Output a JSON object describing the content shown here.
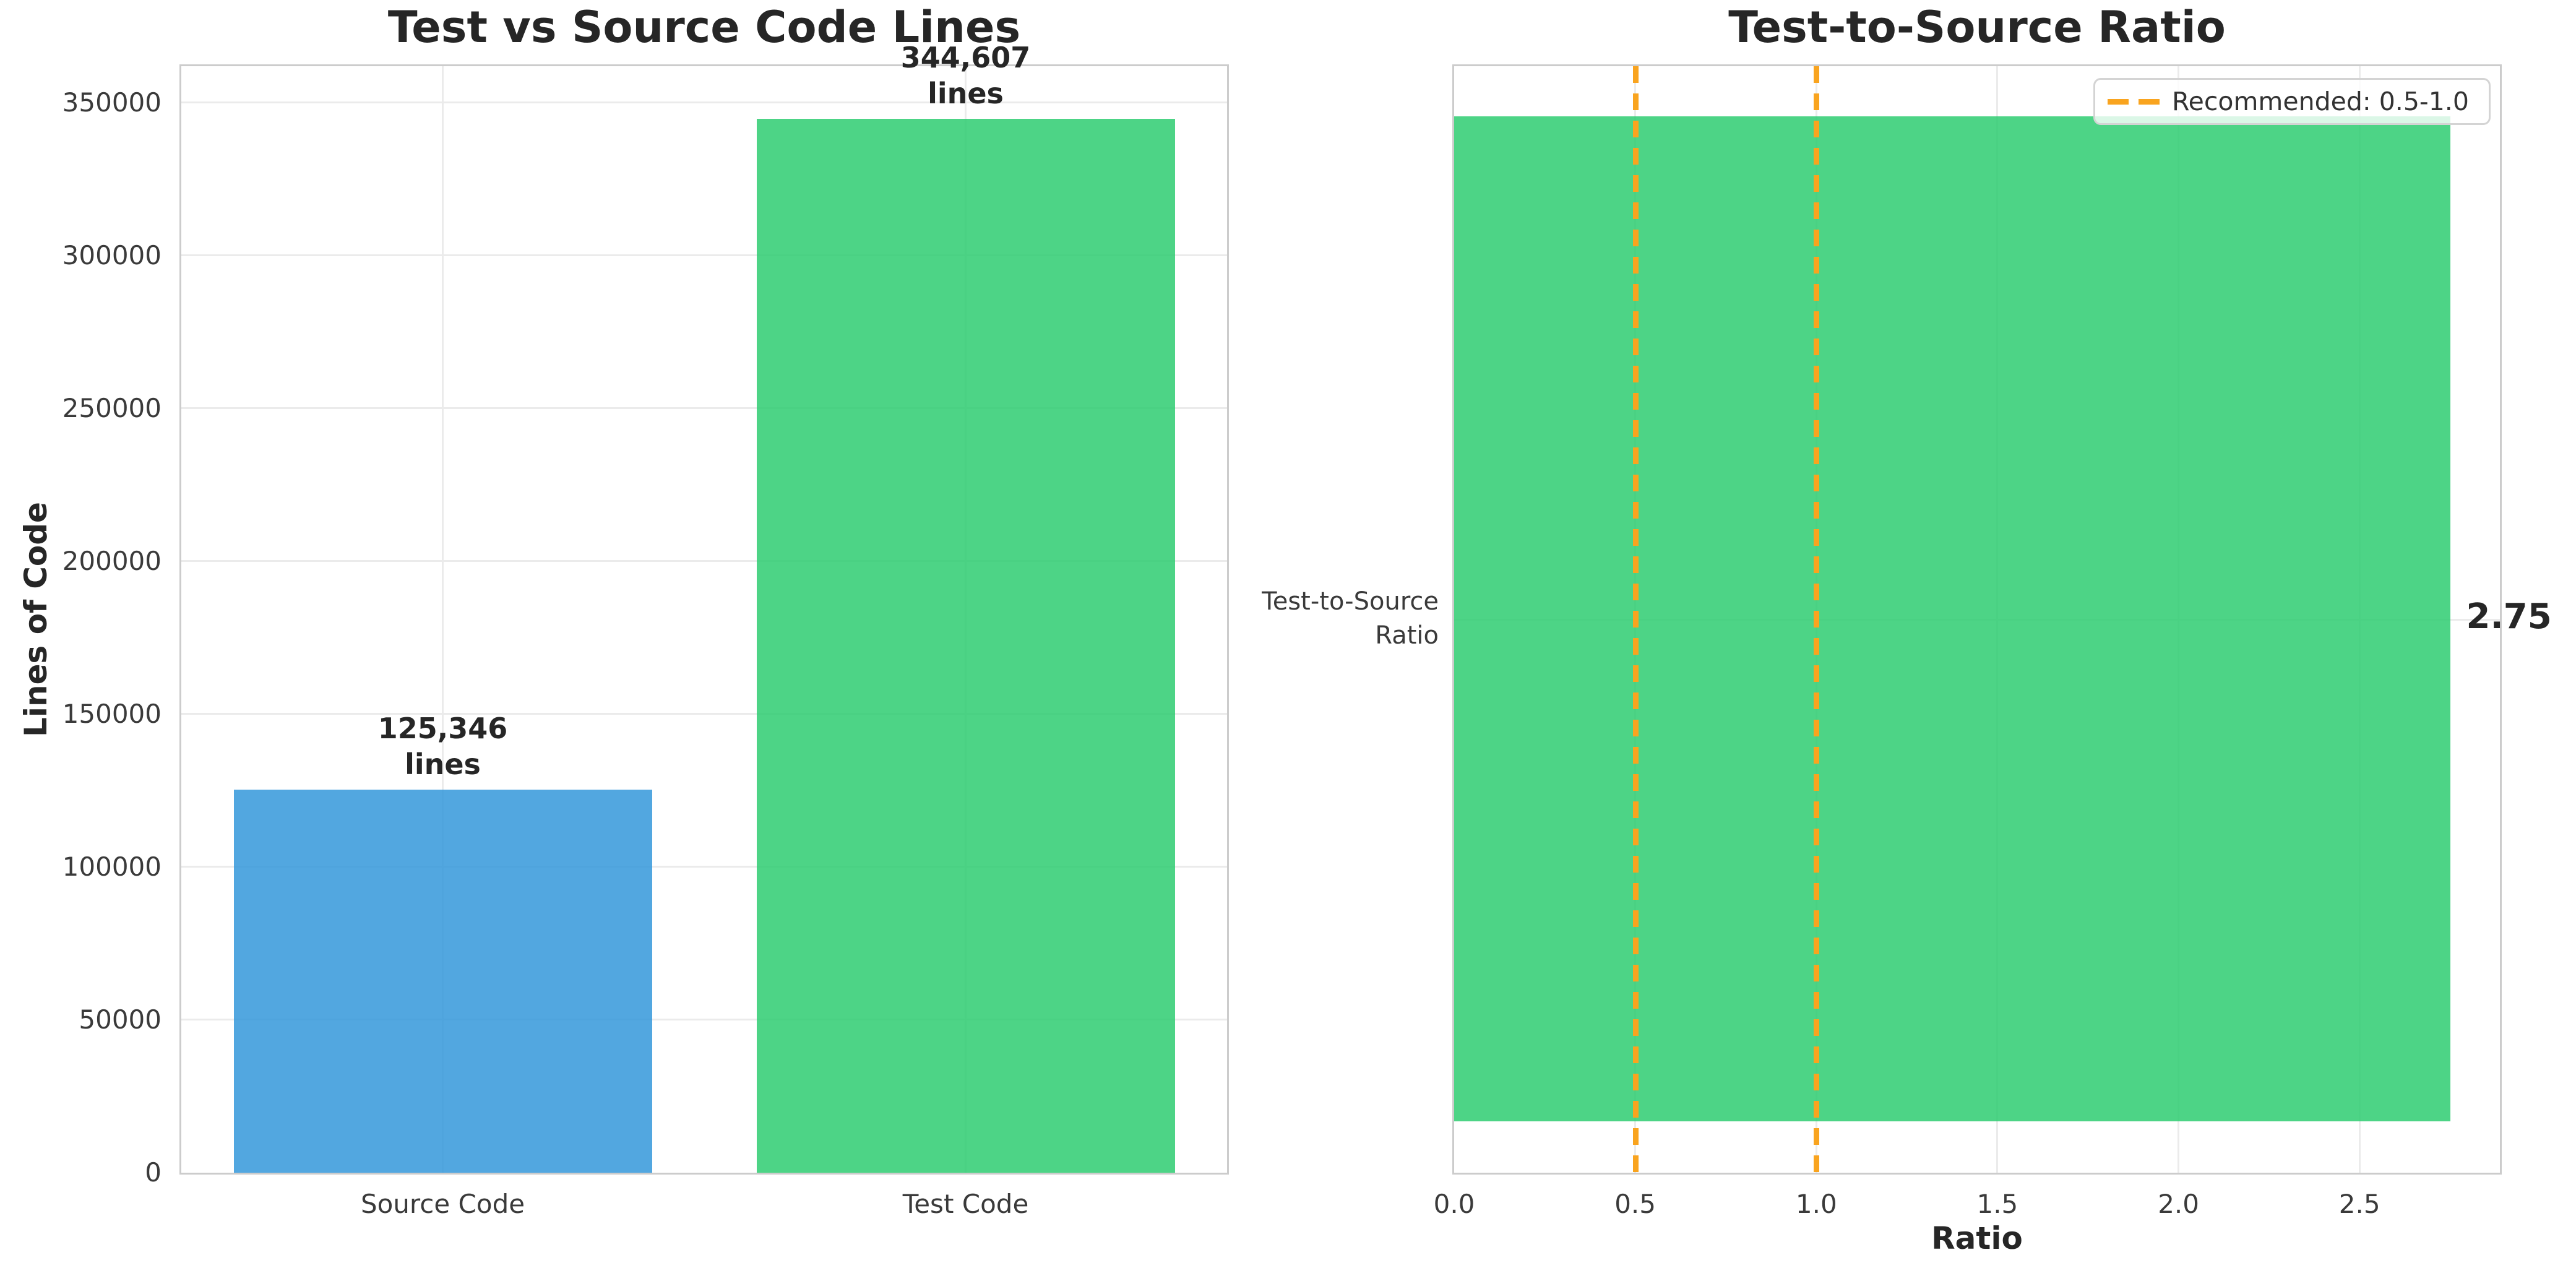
{
  "figure": {
    "background": "#ffffff"
  },
  "colors": {
    "source_bar": "rgba(52,152,219,0.85)",
    "test_bar": "rgba(46,204,113,0.85)",
    "ratio_bar": "rgba(46,204,113,0.85)",
    "reference_line": "#f9a41f",
    "gridline": "#ebebeb",
    "spine": "#cccccc",
    "tick_text": "#3a3a3a",
    "title_text": "#262626"
  },
  "chart_data": [
    {
      "id": "lines-chart",
      "type": "bar",
      "title": "Test vs Source Code Lines",
      "xlabel": "",
      "ylabel": "Lines of Code",
      "categories": [
        "Source Code",
        "Test Code"
      ],
      "values": [
        125346,
        344607
      ],
      "bar_labels": [
        "125,346\nlines",
        "344,607\nlines"
      ],
      "bar_colors": [
        "rgba(52,152,219,0.85)",
        "rgba(46,204,113,0.85)"
      ],
      "yticks": [
        0,
        50000,
        100000,
        150000,
        200000,
        250000,
        300000,
        350000
      ],
      "ylim": [
        0,
        361837
      ],
      "grid": true,
      "legend_position": "none"
    },
    {
      "id": "ratio-chart",
      "type": "barh",
      "title": "Test-to-Source Ratio",
      "xlabel": "Ratio",
      "ylabel": "",
      "categories": [
        "Test-to-Source\nRatio"
      ],
      "values": [
        2.75
      ],
      "bar_labels": [
        "2.75"
      ],
      "bar_colors": [
        "rgba(46,204,113,0.85)"
      ],
      "xticks": [
        "0.0",
        "0.5",
        "1.0",
        "1.5",
        "2.0",
        "2.5"
      ],
      "xtick_values": [
        0,
        0.5,
        1.0,
        1.5,
        2.0,
        2.5
      ],
      "xlim": [
        0,
        2.8875
      ],
      "reference_lines": [
        {
          "x": 0.5,
          "style": "dashed"
        },
        {
          "x": 1.0,
          "style": "dashed"
        }
      ],
      "legend": {
        "label": "Recommended: 0.5-1.0",
        "position": "upper right"
      },
      "grid": true
    }
  ]
}
